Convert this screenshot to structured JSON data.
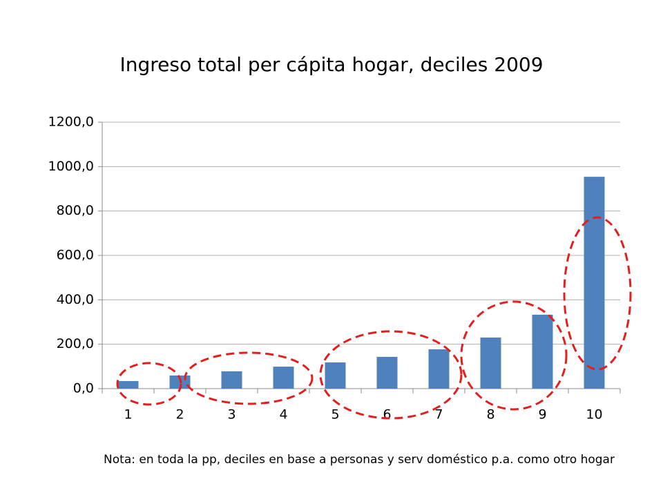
{
  "chart_data": {
    "type": "bar",
    "title": "Ingreso total per cápita hogar, deciles 2009",
    "categories": [
      "1",
      "2",
      "3",
      "4",
      "5",
      "6",
      "7",
      "8",
      "9",
      "10"
    ],
    "values": [
      34,
      59,
      78,
      99,
      118,
      143,
      177,
      230,
      333,
      954
    ],
    "color": "#4f81bd",
    "ylim": [
      0,
      1200
    ],
    "yticks": [
      {
        "value": 0,
        "label": "0,0"
      },
      {
        "value": 200,
        "label": "200,0"
      },
      {
        "value": 400,
        "label": "400,0"
      },
      {
        "value": 600,
        "label": "600,0"
      },
      {
        "value": 800,
        "label": "800,0"
      },
      {
        "value": 1000,
        "label": "1000,0"
      },
      {
        "value": 1200,
        "label": "1200,0"
      }
    ],
    "grid": true,
    "note": "Nota: en toda la pp, deciles en base a personas y serv doméstico p.a. como otro hogar"
  }
}
